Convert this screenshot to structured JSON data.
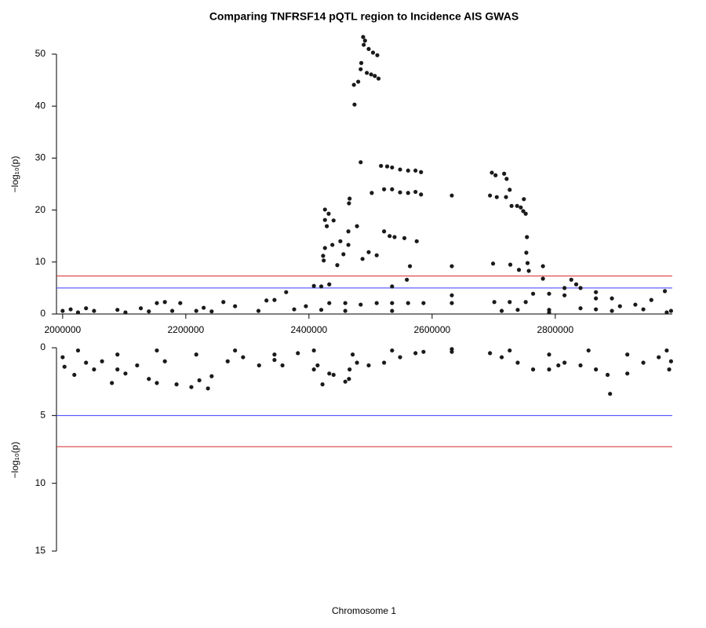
{
  "chart_data": [
    {
      "type": "scatter",
      "title": "Comparing TNFRSF14 pQTL region to Incidence AIS GWAS",
      "y_label": "−log₁₀(p)",
      "color": "#1a1a1a",
      "xlim": [
        1990000,
        2990000
      ],
      "xticks": [
        2000000,
        2200000,
        2400000,
        2600000,
        2800000
      ],
      "ylim": [
        0,
        54
      ],
      "yticks": [
        0,
        10,
        20,
        30,
        40,
        50
      ],
      "inverted": false,
      "hlines": [
        {
          "value": 7.3,
          "color": "#d62728"
        },
        {
          "value": 5,
          "color": "#3b3bff"
        }
      ],
      "x": [
        2488000,
        2491000,
        2489000,
        2497000,
        2504000,
        2511000,
        2485000,
        2484000,
        2494000,
        2501000,
        2507000,
        2513000,
        2480000,
        2473000,
        2474000,
        2484000,
        2517000,
        2527000,
        2535000,
        2548000,
        2561000,
        2573000,
        2582000,
        2522000,
        2535000,
        2548000,
        2561000,
        2573000,
        2582000,
        2502000,
        2466000,
        2465000,
        2426000,
        2432000,
        2426000,
        2440000,
        2429000,
        2478000,
        2464000,
        2522000,
        2531000,
        2539000,
        2555000,
        2575000,
        2451000,
        2464000,
        2438000,
        2426000,
        2497000,
        2510000,
        2423000,
        2424000,
        2487000,
        2456000,
        2446000,
        2564000,
        2632000,
        2632000,
        2697000,
        2703000,
        2717000,
        2721000,
        2694000,
        2705000,
        2720000,
        2726000,
        2729000,
        2738000,
        2744000,
        2748000,
        2752000,
        2749000,
        2754000,
        2753000,
        2755000,
        2699000,
        2727000,
        2780000,
        2757000,
        2741000,
        2408000,
        2420000,
        2433000,
        2559000,
        2535000,
        2826000,
        2834000,
        2841000,
        2815000,
        2780000,
        2433000,
        2459000,
        2484000,
        2510000,
        2535000,
        2561000,
        2586000,
        2701000,
        2726000,
        2752000,
        2866000,
        2892000,
        2815000,
        2790000,
        2764000,
        2866000,
        2363000,
        2344000,
        2331000,
        2280000,
        2261000,
        2229000,
        2166000,
        2153000,
        2191000,
        2127000,
        2089000,
        2051000,
        2013000,
        2978000,
        2956000,
        2930000,
        2905000,
        2943000,
        2988000,
        2866000,
        2841000,
        2790000,
        2739000,
        2713000,
        2632000,
        2632000,
        2535000,
        2459000,
        2420000,
        2395000,
        2376000,
        2318000,
        2242000,
        2217000,
        2025000,
        2000000,
        2038000,
        2102000,
        2140000,
        2178000,
        2790000,
        2892000,
        2981000
      ],
      "values": [
        53.3,
        52.6,
        51.8,
        51.0,
        50.3,
        49.8,
        48.3,
        47.1,
        46.4,
        46.1,
        45.8,
        45.3,
        44.7,
        44.1,
        40.3,
        29.2,
        28.5,
        28.4,
        28.2,
        27.8,
        27.6,
        27.6,
        27.3,
        24.0,
        24.0,
        23.4,
        23.3,
        23.5,
        23.0,
        23.3,
        22.2,
        21.3,
        20.1,
        19.3,
        18.1,
        18.0,
        16.9,
        16.9,
        15.9,
        15.9,
        15.0,
        14.8,
        14.6,
        14.0,
        14.0,
        13.3,
        13.3,
        12.7,
        11.9,
        11.3,
        11.2,
        10.3,
        10.6,
        11.5,
        9.4,
        9.2,
        9.2,
        22.8,
        27.2,
        26.7,
        27.0,
        26.0,
        22.8,
        22.5,
        22.5,
        23.9,
        20.8,
        20.8,
        20.5,
        19.8,
        19.3,
        22.1,
        14.8,
        11.8,
        9.8,
        9.7,
        9.5,
        9.2,
        8.3,
        8.5,
        5.4,
        5.3,
        5.7,
        6.6,
        5.3,
        6.6,
        5.7,
        5.0,
        5.0,
        6.8,
        2.1,
        2.1,
        1.8,
        2.1,
        2.1,
        2.1,
        2.1,
        2.3,
        2.3,
        2.3,
        3.0,
        3.0,
        3.6,
        3.9,
        3.9,
        4.2,
        4.2,
        2.7,
        2.6,
        1.5,
        2.3,
        1.2,
        2.3,
        2.1,
        2.1,
        1.1,
        0.8,
        0.6,
        0.9,
        4.4,
        2.7,
        1.8,
        1.5,
        0.9,
        0.6,
        0.9,
        1.1,
        0.8,
        0.8,
        0.6,
        2.1,
        3.6,
        0.6,
        0.6,
        0.8,
        1.5,
        0.9,
        0.6,
        0.5,
        0.6,
        0.3,
        0.6,
        1.1,
        0.3,
        0.5,
        0.6,
        0.3,
        0.6,
        0.3
      ]
    },
    {
      "type": "scatter",
      "x_label": "Chromosome 1",
      "y_label": "−log₁₀(p)",
      "color": "#1a1a1a",
      "xlim": [
        1990000,
        2990000
      ],
      "ylim": [
        0,
        15
      ],
      "yticks": [
        0,
        5,
        10,
        15
      ],
      "inverted": true,
      "hlines": [
        {
          "value": 7.3,
          "color": "#d62728"
        },
        {
          "value": 5,
          "color": "#3b3bff"
        }
      ],
      "x": [
        2000000,
        2003000,
        2019000,
        2038000,
        2051000,
        2064000,
        2080000,
        2089000,
        2102000,
        2121000,
        2140000,
        2153000,
        2166000,
        2185000,
        2209000,
        2222000,
        2236000,
        2242000,
        2268000,
        2293000,
        2319000,
        2344000,
        2357000,
        2382000,
        2408000,
        2414000,
        2422000,
        2433000,
        2440000,
        2459000,
        2465000,
        2466000,
        2478000,
        2497000,
        2522000,
        2548000,
        2573000,
        2586000,
        2632000,
        2632000,
        2694000,
        2713000,
        2739000,
        2764000,
        2790000,
        2805000,
        2815000,
        2841000,
        2866000,
        2885000,
        2889000,
        2917000,
        2943000,
        2968000,
        2985000,
        2988000,
        2025000,
        2153000,
        2280000,
        2408000,
        2535000,
        2726000,
        2854000,
        2981000,
        2089000,
        2217000,
        2344000,
        2471000,
        2790000,
        2917000
      ],
      "values": [
        0.7,
        1.4,
        2.0,
        1.1,
        1.6,
        1.0,
        2.6,
        1.6,
        1.9,
        1.3,
        2.3,
        2.6,
        1.0,
        2.7,
        2.9,
        2.4,
        3.0,
        2.1,
        1.0,
        0.7,
        1.3,
        0.9,
        1.3,
        0.4,
        1.6,
        1.3,
        2.7,
        1.9,
        2.0,
        2.5,
        2.3,
        1.6,
        1.1,
        1.3,
        1.1,
        0.7,
        0.4,
        0.3,
        0.3,
        0.1,
        0.4,
        0.7,
        1.1,
        1.6,
        1.6,
        1.3,
        1.1,
        1.3,
        1.6,
        2.0,
        3.4,
        1.9,
        1.1,
        0.7,
        1.6,
        1.0,
        0.2,
        0.2,
        0.2,
        0.2,
        0.2,
        0.2,
        0.2,
        0.2,
        0.5,
        0.5,
        0.5,
        0.5,
        0.5,
        0.5
      ]
    }
  ]
}
